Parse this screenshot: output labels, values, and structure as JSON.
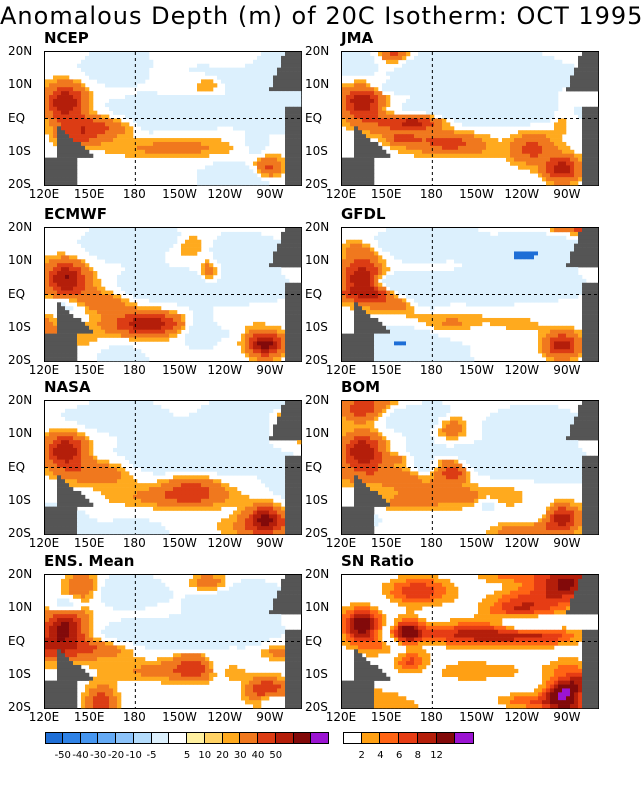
{
  "title": "Anomalous Depth (m) of 20C Isotherm: OCT 1995",
  "chart_data": [
    {
      "type": "heatmap",
      "name": "NCEP",
      "variant": "anomaly"
    },
    {
      "type": "heatmap",
      "name": "JMA",
      "variant": "anomaly"
    },
    {
      "type": "heatmap",
      "name": "ECMWF",
      "variant": "anomaly"
    },
    {
      "type": "heatmap",
      "name": "GFDL",
      "variant": "anomaly"
    },
    {
      "type": "heatmap",
      "name": "NASA",
      "variant": "anomaly"
    },
    {
      "type": "heatmap",
      "name": "BOM",
      "variant": "anomaly"
    },
    {
      "type": "heatmap",
      "name": "ENS. Mean",
      "variant": "anomaly"
    },
    {
      "type": "heatmap",
      "name": "SN Ratio",
      "variant": "snr"
    }
  ],
  "axes": {
    "x_ticks": [
      "120E",
      "150E",
      "180",
      "150W",
      "120W",
      "90W"
    ],
    "y_ticks": [
      "20N",
      "10N",
      "EQ",
      "10S",
      "20S"
    ]
  },
  "colorbar_anomaly": {
    "labels": [
      "-50",
      "-40",
      "-30",
      "-20",
      "-10",
      "-5",
      "5",
      "10",
      "20",
      "30",
      "40",
      "50"
    ],
    "colors": [
      "#1e6ed6",
      "#2f82e6",
      "#4696f0",
      "#64aaf5",
      "#8cc3fa",
      "#b4dcfc",
      "#dcf0fd",
      "#ffffff",
      "#fff0a0",
      "#ffd264",
      "#ffaa1e",
      "#f0781e",
      "#dc3c14",
      "#b41e0a",
      "#820a0a",
      "#9b14d2"
    ]
  },
  "colorbar_snr": {
    "labels": [
      "2",
      "4",
      "6",
      "8",
      "12"
    ],
    "colors": [
      "#ffffff",
      "#ffa014",
      "#ff6414",
      "#e63c14",
      "#b41e0a",
      "#820a0a",
      "#9b14d2"
    ]
  }
}
